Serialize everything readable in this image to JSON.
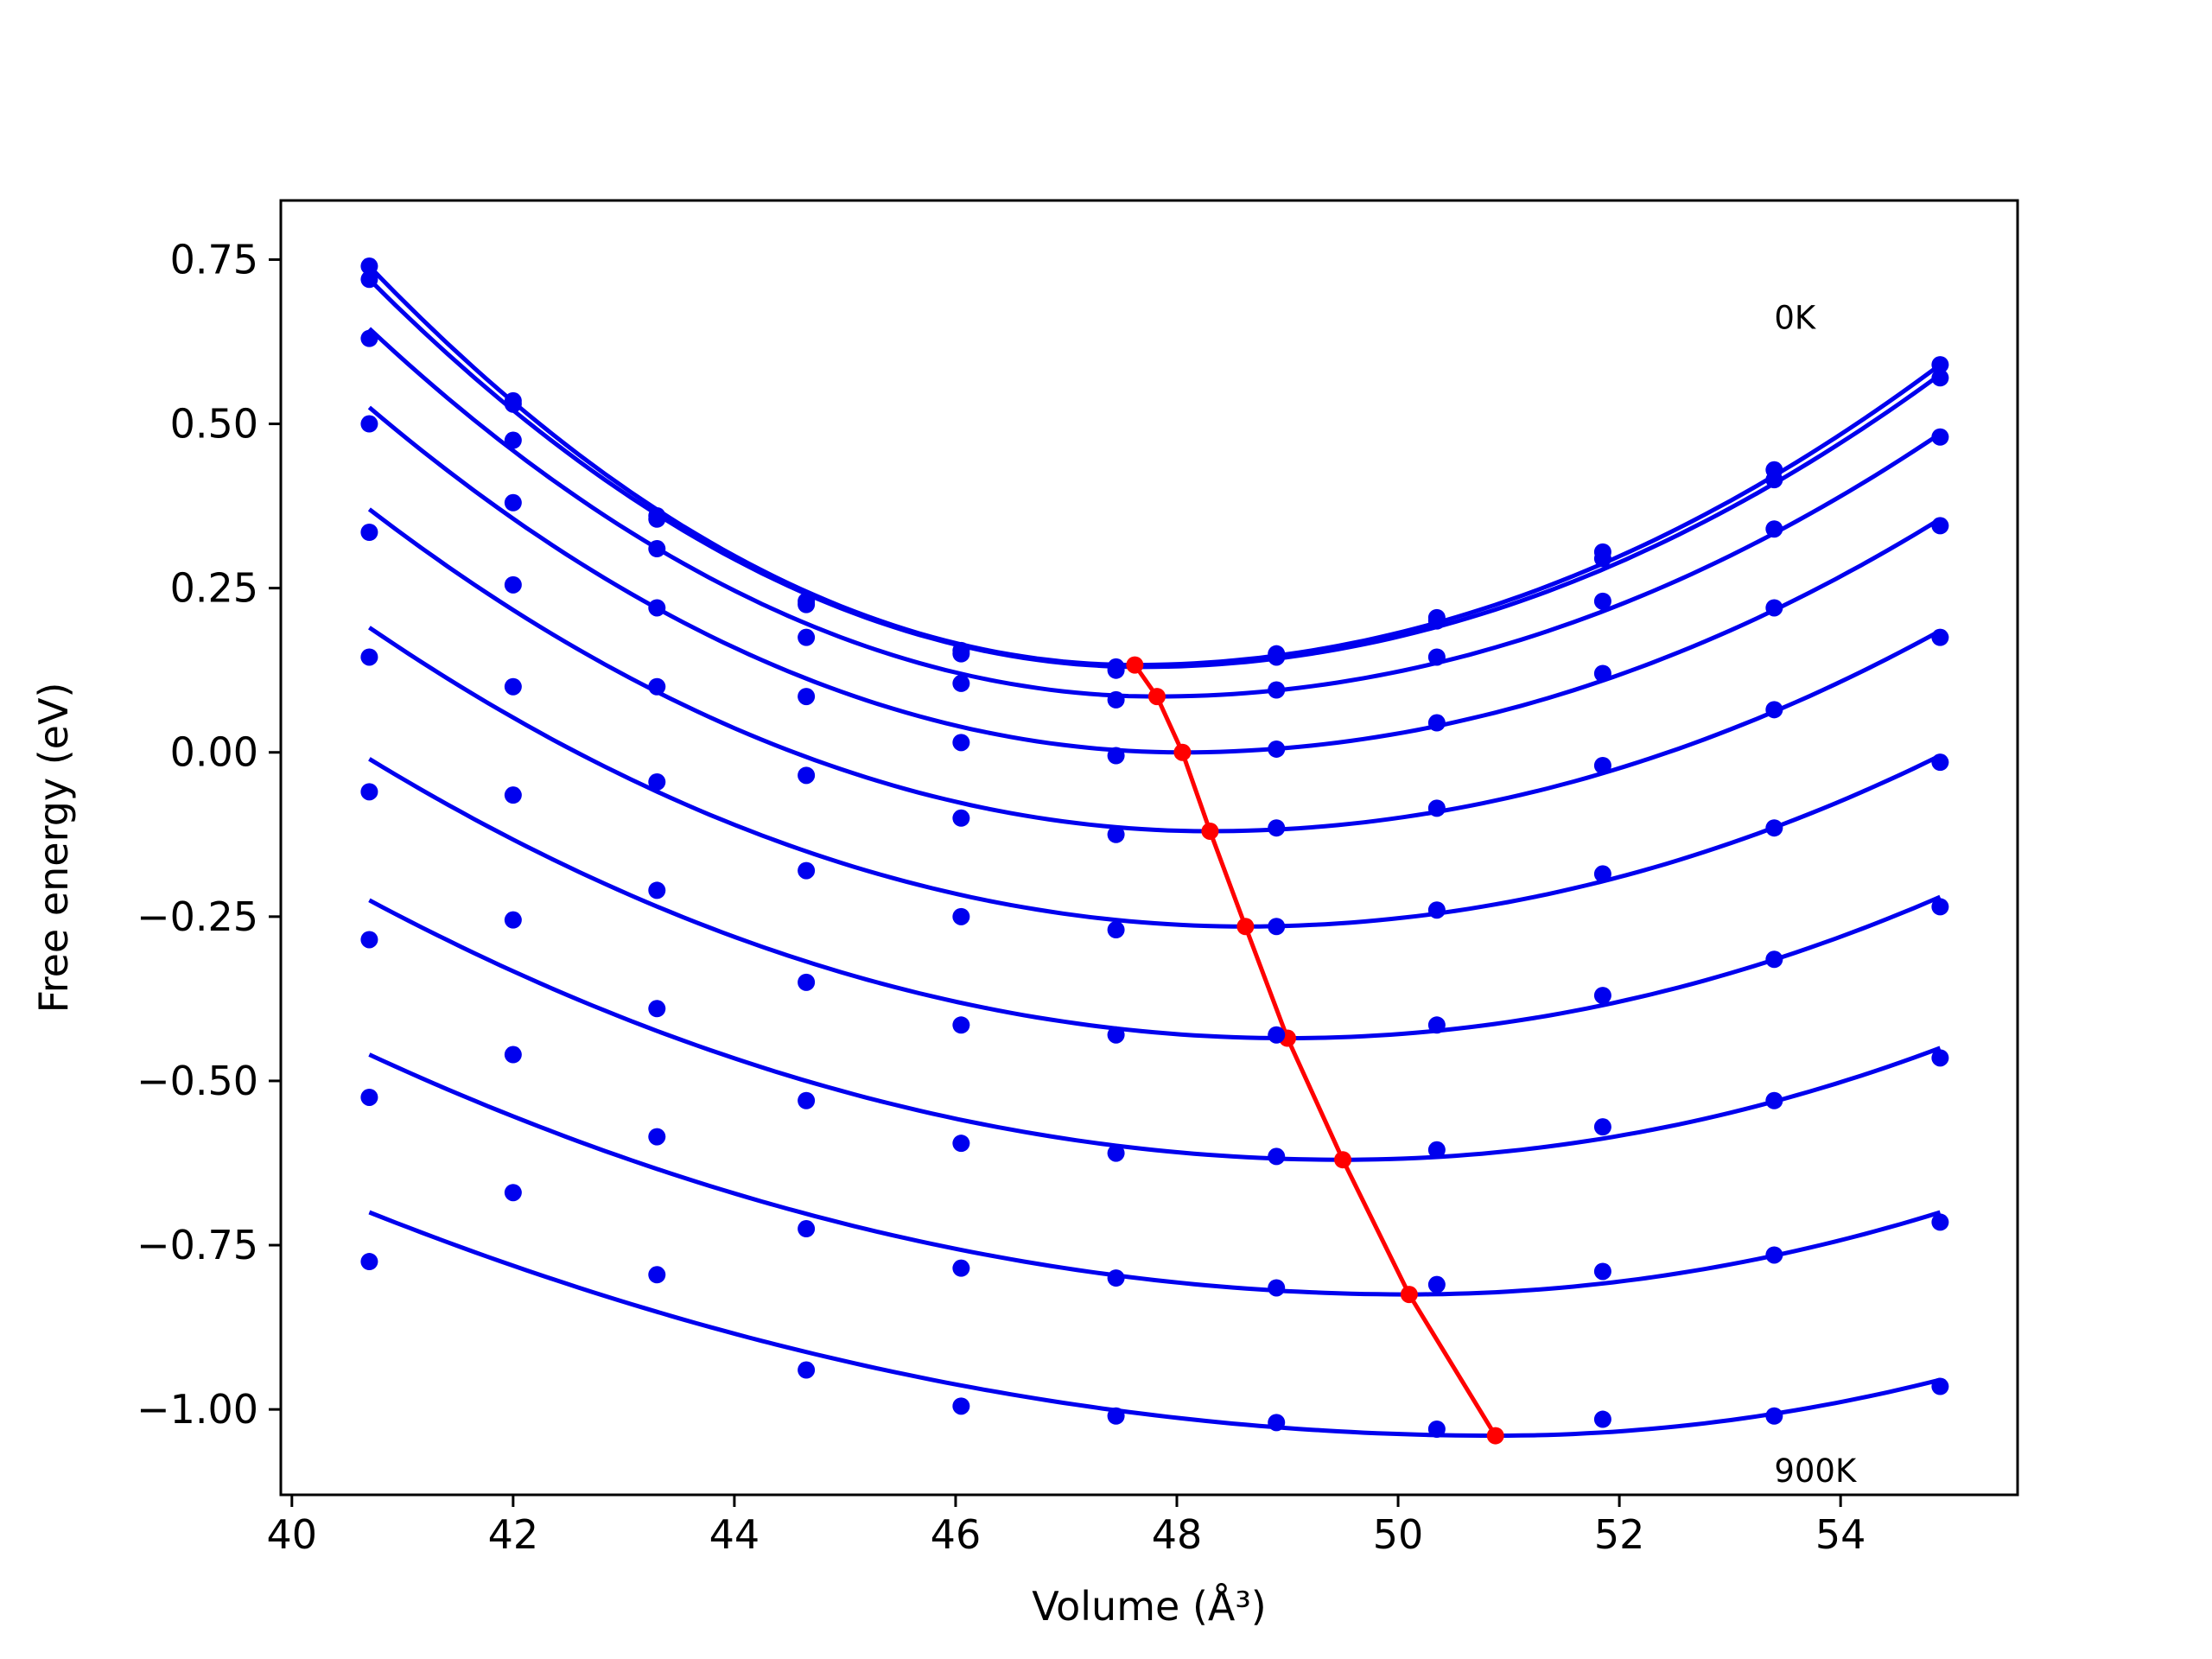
{
  "chart_data": {
    "type": "line",
    "xlabel": "Volume (Å³)",
    "ylabel": "Free energy (eV)",
    "xlim": [
      39.9,
      55.6
    ],
    "ylim": [
      -1.13,
      0.84
    ],
    "x_ticks": [
      40,
      42,
      44,
      46,
      48,
      50,
      52,
      54
    ],
    "y_ticks": [
      0.75,
      0.5,
      0.25,
      0.0,
      -0.25,
      -0.5,
      -0.75,
      -1.0
    ],
    "y_tick_labels": [
      "0.75",
      "0.50",
      "0.25",
      "0.00",
      "−0.25",
      "−0.50",
      "−0.75",
      "−1.00"
    ],
    "grid": false,
    "legend": "none",
    "colors": {
      "fit": "#0000ee",
      "points": "#0000ee",
      "minima": "#ff0000"
    },
    "annotations": [
      {
        "text": "0K",
        "x": 53.4,
        "y": 0.645
      },
      {
        "text": "900K",
        "x": 53.4,
        "y": -1.11
      }
    ],
    "volumes": [
      40.7,
      42.0,
      43.3,
      44.65,
      46.05,
      47.45,
      48.9,
      50.35,
      51.85,
      53.4,
      54.9
    ],
    "series": [
      {
        "values": [
          0.74,
          0.535,
          0.36,
          0.23,
          0.155,
          0.13,
          0.15,
          0.205,
          0.305,
          0.43,
          0.59
        ],
        "fit_ends": [
          0.74,
          0.59
        ],
        "min": [
          47.62,
          0.133
        ]
      },
      {
        "values": [
          0.72,
          0.53,
          0.355,
          0.225,
          0.15,
          0.125,
          0.145,
          0.2,
          0.295,
          0.415,
          0.57
        ],
        "fit_ends": [
          0.72,
          0.575
        ],
        "min": [
          47.68,
          0.13
        ]
      },
      {
        "values": [
          0.63,
          0.475,
          0.31,
          0.175,
          0.105,
          0.08,
          0.095,
          0.145,
          0.23,
          0.34,
          0.48
        ],
        "fit_ends": [
          0.645,
          0.485
        ],
        "min": [
          47.82,
          0.085
        ]
      },
      {
        "values": [
          0.5,
          0.38,
          0.22,
          0.085,
          0.015,
          -0.005,
          0.005,
          0.045,
          0.12,
          0.22,
          0.345
        ],
        "fit_ends": [
          0.525,
          0.355
        ],
        "min": [
          48.05,
          0.0
        ]
      },
      {
        "values": [
          0.335,
          0.255,
          0.1,
          -0.035,
          -0.1,
          -0.125,
          -0.115,
          -0.085,
          -0.02,
          0.065,
          0.175
        ],
        "fit_ends": [
          0.37,
          0.185
        ],
        "min": [
          48.3,
          -0.12
        ]
      },
      {
        "values": [
          0.145,
          0.1,
          -0.045,
          -0.18,
          -0.25,
          -0.27,
          -0.265,
          -0.24,
          -0.185,
          -0.115,
          -0.015
        ],
        "fit_ends": [
          0.19,
          -0.005
        ],
        "min": [
          48.62,
          -0.265
        ]
      },
      {
        "values": [
          -0.06,
          -0.065,
          -0.21,
          -0.35,
          -0.415,
          -0.43,
          -0.43,
          -0.415,
          -0.37,
          -0.315,
          -0.235
        ],
        "fit_ends": [
          -0.01,
          -0.22
        ],
        "min": [
          49.0,
          -0.435
        ]
      },
      {
        "values": [
          -0.285,
          -0.255,
          -0.39,
          -0.53,
          -0.595,
          -0.61,
          -0.615,
          -0.605,
          -0.57,
          -0.53,
          -0.465
        ],
        "fit_ends": [
          -0.225,
          -0.45
        ],
        "min": [
          49.5,
          -0.62
        ]
      },
      {
        "values": [
          -0.525,
          -0.46,
          -0.585,
          -0.725,
          -0.785,
          -0.8,
          -0.815,
          -0.81,
          -0.79,
          -0.765,
          -0.715
        ],
        "fit_ends": [
          -0.46,
          -0.7
        ],
        "min": [
          50.1,
          -0.825
        ]
      },
      {
        "values": [
          -0.775,
          -0.67,
          -0.795,
          -0.94,
          -0.995,
          -1.01,
          -1.02,
          -1.03,
          -1.015,
          -1.01,
          -0.965
        ],
        "fit_ends": [
          -0.7,
          -0.955
        ],
        "min": [
          50.88,
          -1.04
        ]
      }
    ],
    "minima_line": [
      [
        47.62,
        0.133
      ],
      [
        47.82,
        0.085
      ],
      [
        48.05,
        0.0
      ],
      [
        48.3,
        -0.12
      ],
      [
        48.62,
        -0.265
      ],
      [
        49.0,
        -0.435
      ],
      [
        49.5,
        -0.62
      ],
      [
        50.1,
        -0.825
      ],
      [
        50.88,
        -1.04
      ]
    ]
  }
}
